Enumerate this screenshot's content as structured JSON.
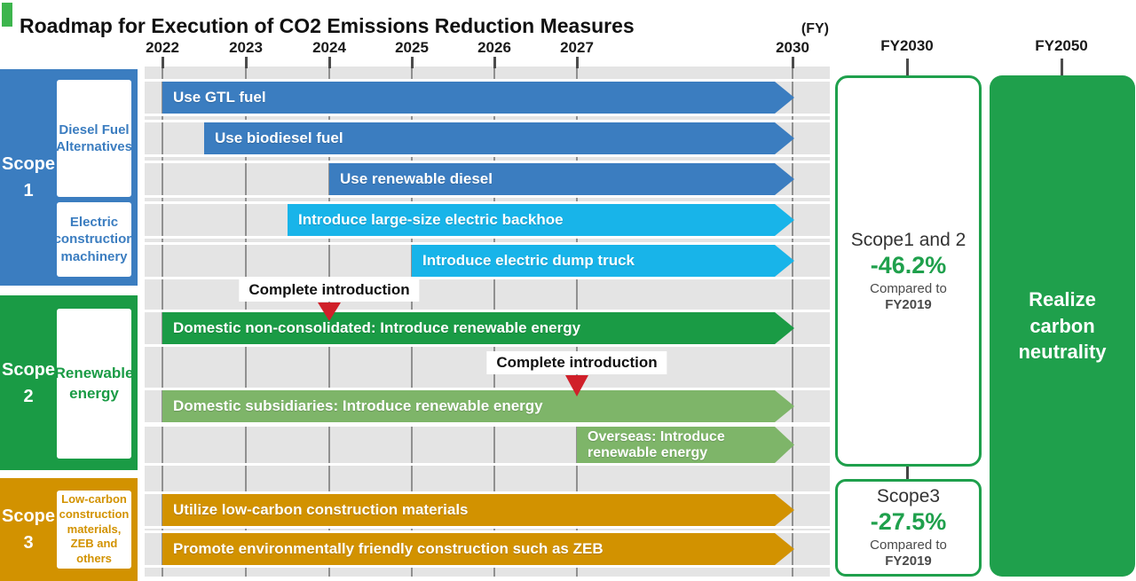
{
  "title": "Roadmap for Execution of CO2 Emissions Reduction Measures",
  "colors": {
    "title_accent": "#3db54d",
    "target_green": "#1fa04c",
    "marker_red": "#d0202a",
    "blue": "#3b7dc0",
    "cyan": "#18b4e9",
    "dark_green": "#1a9b45",
    "light_green": "#7eb569",
    "orange": "#d29200",
    "plot_background": "#e4e4e4",
    "gridline": "#909090"
  },
  "axis": {
    "fy_note": "(FY)",
    "years": [
      "2022",
      "2023",
      "2024",
      "2025",
      "2026",
      "2027",
      "2030"
    ],
    "right_headers": [
      "FY2030",
      "FY2050"
    ]
  },
  "sidebar": {
    "scopes": [
      {
        "name": "Scope 1",
        "color": "#3b7dc0",
        "categories": [
          "Diesel Fuel Alternatives",
          "Electric construction machinery"
        ]
      },
      {
        "name": "Scope 2",
        "color": "#1a9b45",
        "categories": [
          "Renewable energy"
        ]
      },
      {
        "name": "Scope 3",
        "color": "#d29200",
        "categories": [
          "Low-carbon construction materials, ZEB and others"
        ]
      }
    ]
  },
  "bars": [
    {
      "row": 0,
      "scope": "Scope 1",
      "label": "Use GTL fuel",
      "start_year": 2022,
      "end_year": 2030,
      "color": "#3b7dc0"
    },
    {
      "row": 1,
      "scope": "Scope 1",
      "label": "Use biodiesel fuel",
      "start_year": 2022.5,
      "end_year": 2030,
      "color": "#3b7dc0"
    },
    {
      "row": 2,
      "scope": "Scope 1",
      "label": "Use renewable diesel",
      "start_year": 2024,
      "end_year": 2030,
      "color": "#3b7dc0"
    },
    {
      "row": 3,
      "scope": "Scope 1",
      "label": "Introduce large-size electric backhoe",
      "start_year": 2023.5,
      "end_year": 2030,
      "color": "#18b4e9"
    },
    {
      "row": 4,
      "scope": "Scope 1",
      "label": "Introduce electric dump truck",
      "start_year": 2025,
      "end_year": 2030,
      "color": "#18b4e9"
    },
    {
      "row": 5,
      "scope": "Scope 2",
      "label": "Domestic non-consolidated: Introduce renewable energy",
      "start_year": 2022,
      "end_year": 2030,
      "color": "#1a9b45"
    },
    {
      "row": 6,
      "scope": "Scope 2",
      "label": "Domestic subsidiaries: Introduce renewable energy",
      "start_year": 2022,
      "end_year": 2030,
      "color": "#7eb569"
    },
    {
      "row": 7,
      "scope": "Scope 2",
      "label": "Overseas: Introduce renewable energy",
      "start_year": 2027,
      "end_year": 2030,
      "color": "#7eb569",
      "two_line": true
    },
    {
      "row": 8,
      "scope": "Scope 3",
      "label": "Utilize low-carbon construction materials",
      "start_year": 2022,
      "end_year": 2030,
      "color": "#d29200"
    },
    {
      "row": 9,
      "scope": "Scope 3",
      "label": "Promote environmentally friendly construction such as ZEB",
      "start_year": 2022,
      "end_year": 2030,
      "color": "#d29200"
    }
  ],
  "markers": [
    {
      "label": "Complete introduction",
      "year": 2024,
      "applies_to": "Domestic non-consolidated: Introduce renewable energy"
    },
    {
      "label": "Complete introduction",
      "year": 2027,
      "applies_to": "Domestic subsidiaries: Introduce renewable energy"
    }
  ],
  "targets": {
    "fy2030": {
      "header": "FY2030",
      "scope12": {
        "title": "Scope1 and 2",
        "value": "-46.2%",
        "note_line1": "Compared to",
        "note_line2": "FY2019"
      },
      "scope3": {
        "title": "Scope3",
        "value": "-27.5%",
        "note_line1": "Compared to",
        "note_line2": "FY2019"
      }
    },
    "fy2050": {
      "header": "FY2050",
      "text": "Realize carbon neutrality"
    }
  }
}
